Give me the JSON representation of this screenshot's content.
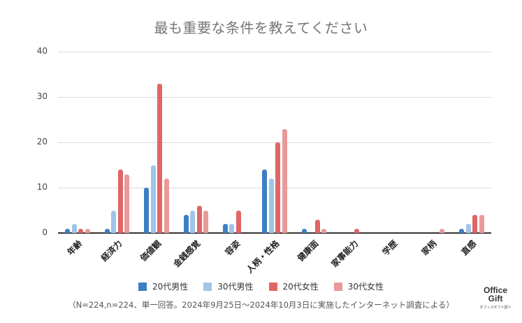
{
  "chart_data": {
    "type": "bar",
    "title": "最も重要な条件を教えてください",
    "xlabel": "",
    "ylabel": "",
    "ylim": [
      0,
      40
    ],
    "yticks": [
      0,
      10,
      20,
      30,
      40
    ],
    "grid": true,
    "legend_position": "bottom",
    "categories": [
      "年齢",
      "経済力",
      "価値観",
      "金銭感覚",
      "容姿",
      "人柄・性格",
      "健康面",
      "家事能力",
      "学歴",
      "家柄",
      "直感"
    ],
    "series": [
      {
        "name": "20代男性",
        "color": "#3d7fc4",
        "values": [
          1,
          1,
          10,
          4,
          2,
          14,
          1,
          0,
          0,
          0,
          1
        ]
      },
      {
        "name": "30代男性",
        "color": "#9fc5e8",
        "values": [
          2,
          5,
          15,
          5,
          2,
          12,
          0,
          0,
          0,
          0,
          2
        ]
      },
      {
        "name": "20代女性",
        "color": "#e06666",
        "values": [
          1,
          14,
          33,
          6,
          5,
          20,
          3,
          1,
          0,
          0,
          4
        ]
      },
      {
        "name": "30代女性",
        "color": "#ea9999",
        "values": [
          1,
          13,
          12,
          5,
          0,
          23,
          1,
          0,
          0,
          1,
          4
        ]
      }
    ],
    "footnote": "（N=224,n=224、単一回答。2024年9月25日～2024年10月3日に実施したインターネット調査による）"
  },
  "logo": {
    "line1": "Office",
    "line2": "Gift",
    "sub": "オフィスギフト調べ"
  }
}
